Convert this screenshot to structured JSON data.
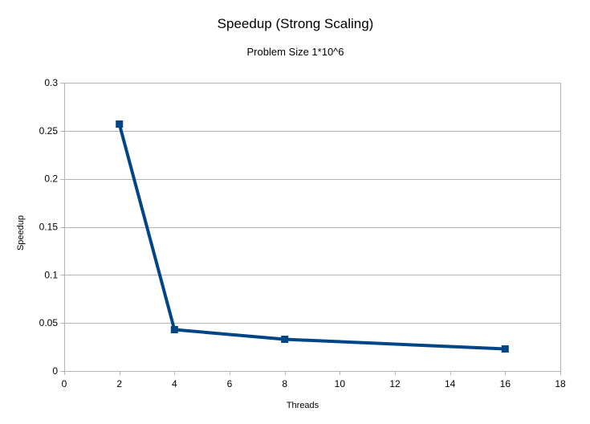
{
  "chart_data": {
    "type": "line",
    "title": "Speedup (Strong Scaling)",
    "subtitle": "Problem Size 1*10^6",
    "xlabel": "Threads",
    "ylabel": "Speedup",
    "xlim": [
      0,
      18
    ],
    "ylim": [
      0,
      0.3
    ],
    "xticks": [
      "0",
      "2",
      "4",
      "6",
      "8",
      "10",
      "12",
      "14",
      "16",
      "18"
    ],
    "yticks": [
      "0",
      "0.05",
      "0.1",
      "0.15",
      "0.2",
      "0.25",
      "0.3"
    ],
    "grid": true,
    "legend": "none",
    "series": [
      {
        "x": [
          2,
          4,
          8,
          16
        ],
        "values": [
          0.257,
          0.043,
          0.033,
          0.023
        ],
        "color": "#004586",
        "marker": "square"
      }
    ]
  }
}
